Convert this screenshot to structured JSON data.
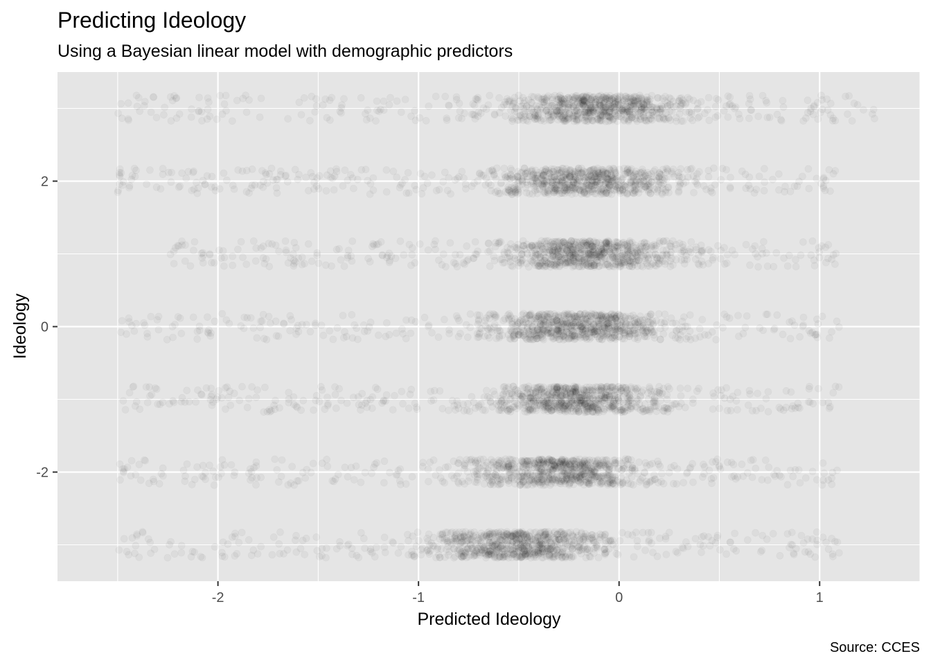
{
  "chart_data": {
    "type": "scatter",
    "title": "Predicting Ideology",
    "subtitle": "Using a Bayesian linear model with demographic predictors",
    "xlabel": "Predicted Ideology",
    "ylabel": "Ideology",
    "caption": "Source: CCES",
    "xlim": [
      -2.8,
      1.5
    ],
    "ylim": [
      -3.5,
      3.5
    ],
    "x_ticks": [
      -2,
      -1,
      0,
      1
    ],
    "x_tick_labels": [
      "-2",
      "-1",
      "0",
      "1"
    ],
    "y_ticks": [
      -2,
      0,
      2
    ],
    "y_tick_labels": [
      "-2",
      "0",
      "2"
    ],
    "grid": true,
    "point_color": "#000000",
    "point_alpha": 0.04,
    "panel_background": "#e5e5e5",
    "y_levels": [
      -3,
      -2,
      -1,
      0,
      1,
      2,
      3
    ],
    "x_range_by_level": [
      [
        -2.5,
        1.1
      ],
      [
        -2.5,
        1.1
      ],
      [
        -2.5,
        1.1
      ],
      [
        -2.5,
        1.1
      ],
      [
        -2.3,
        1.1
      ],
      [
        -2.5,
        1.1
      ],
      [
        -2.5,
        1.3
      ]
    ],
    "x_mode_by_level": [
      -0.5,
      -0.3,
      -0.2,
      -0.2,
      -0.15,
      -0.15,
      -0.1
    ],
    "y_jitter": 0.18,
    "points_per_level": 900
  }
}
